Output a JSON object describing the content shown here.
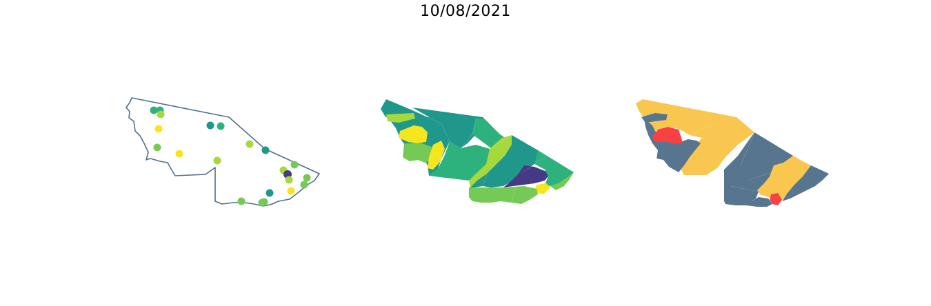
{
  "figure": {
    "title": "10/08/2021"
  },
  "colors": {
    "outline": "#4f6f8c",
    "viridis_dark": "#453a83",
    "viridis_teal": "#1f978b",
    "viridis_green": "#2db27d",
    "viridis_lightgreen": "#74ca55",
    "viridis_lime": "#a7d83c",
    "viridis_yellow": "#f6e620",
    "category_slate": "#57758f",
    "category_gold": "#f9c74f",
    "category_red": "#f94144"
  },
  "panels": [
    {
      "kind": "point-map",
      "points": [
        {
          "level": "green"
        },
        {
          "level": "green"
        },
        {
          "level": "lime"
        },
        {
          "level": "yellow"
        },
        {
          "level": "lightgreen"
        },
        {
          "level": "yellow"
        },
        {
          "level": "teal"
        },
        {
          "level": "green"
        },
        {
          "level": "lime"
        },
        {
          "level": "teal"
        },
        {
          "level": "lime"
        },
        {
          "level": "lightgreen"
        },
        {
          "level": "lime"
        },
        {
          "level": "dark"
        },
        {
          "level": "lime"
        },
        {
          "level": "lightgreen"
        },
        {
          "level": "lightgreen"
        },
        {
          "level": "teal"
        },
        {
          "level": "yellow"
        },
        {
          "level": "lightgreen"
        },
        {
          "level": "lightgreen"
        },
        {
          "level": "lightgreen"
        }
      ]
    },
    {
      "kind": "choropleth-continuous",
      "colormap": "viridis"
    },
    {
      "kind": "choropleth-categorical",
      "categories": [
        "slate",
        "gold",
        "red"
      ]
    }
  ]
}
